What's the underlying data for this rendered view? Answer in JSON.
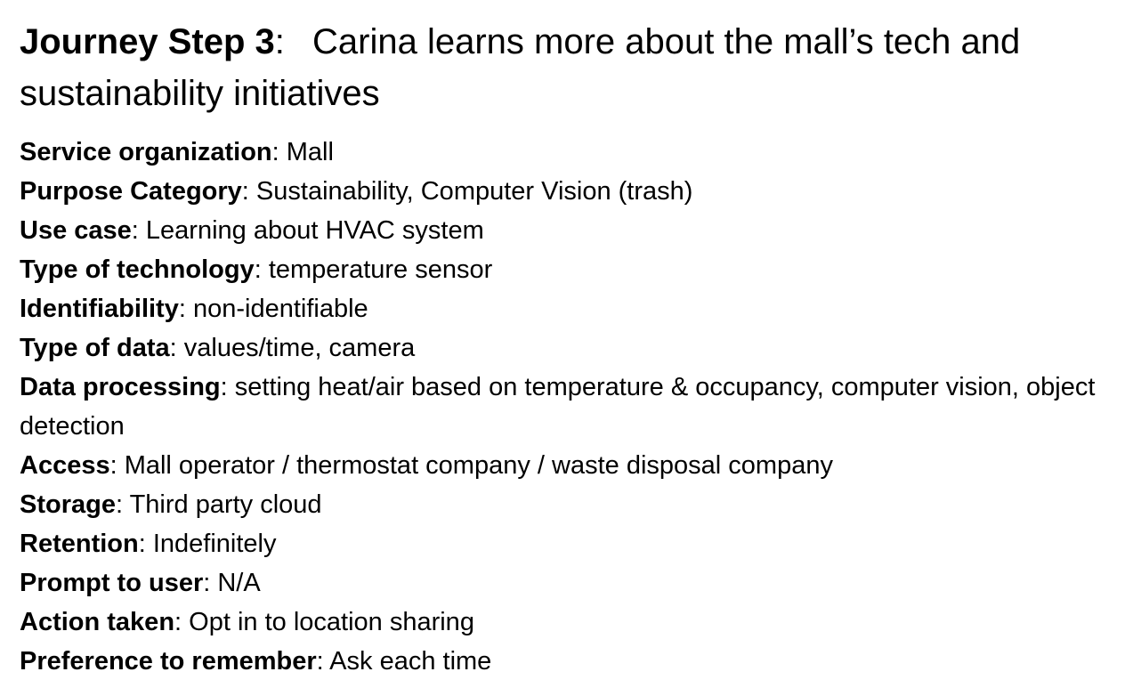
{
  "heading": {
    "step_label": "Journey Step 3",
    "separator": ":",
    "title": "Carina learns more about the mall’s tech and sustainability initiatives"
  },
  "fields": [
    {
      "label": "Service organization",
      "value": ": Mall"
    },
    {
      "label": "Purpose Category",
      "value": ": Sustainability, Computer Vision (trash)"
    },
    {
      "label": "Use case",
      "value": ": Learning about HVAC system"
    },
    {
      "label": "Type of technology",
      "value": ": temperature sensor"
    },
    {
      "label": "Identifiability",
      "value": ": non-identifiable"
    },
    {
      "label": "Type of data",
      "value": ": values/time, camera"
    },
    {
      "label": "Data processing",
      "value": ": setting heat/air based on temperature & occupancy, computer vision, object detection"
    },
    {
      "label": "Access",
      "value": ": Mall operator / thermostat company / waste disposal company"
    },
    {
      "label": "Storage",
      "value": ": Third party cloud"
    },
    {
      "label": "Retention",
      "value": ": Indefinitely"
    },
    {
      "label": "Prompt to user",
      "value": ": N/A"
    },
    {
      "label": "Action taken",
      "value": ": Opt in to location sharing"
    },
    {
      "label": "Preference to remember",
      "value": ": Ask each time"
    }
  ]
}
